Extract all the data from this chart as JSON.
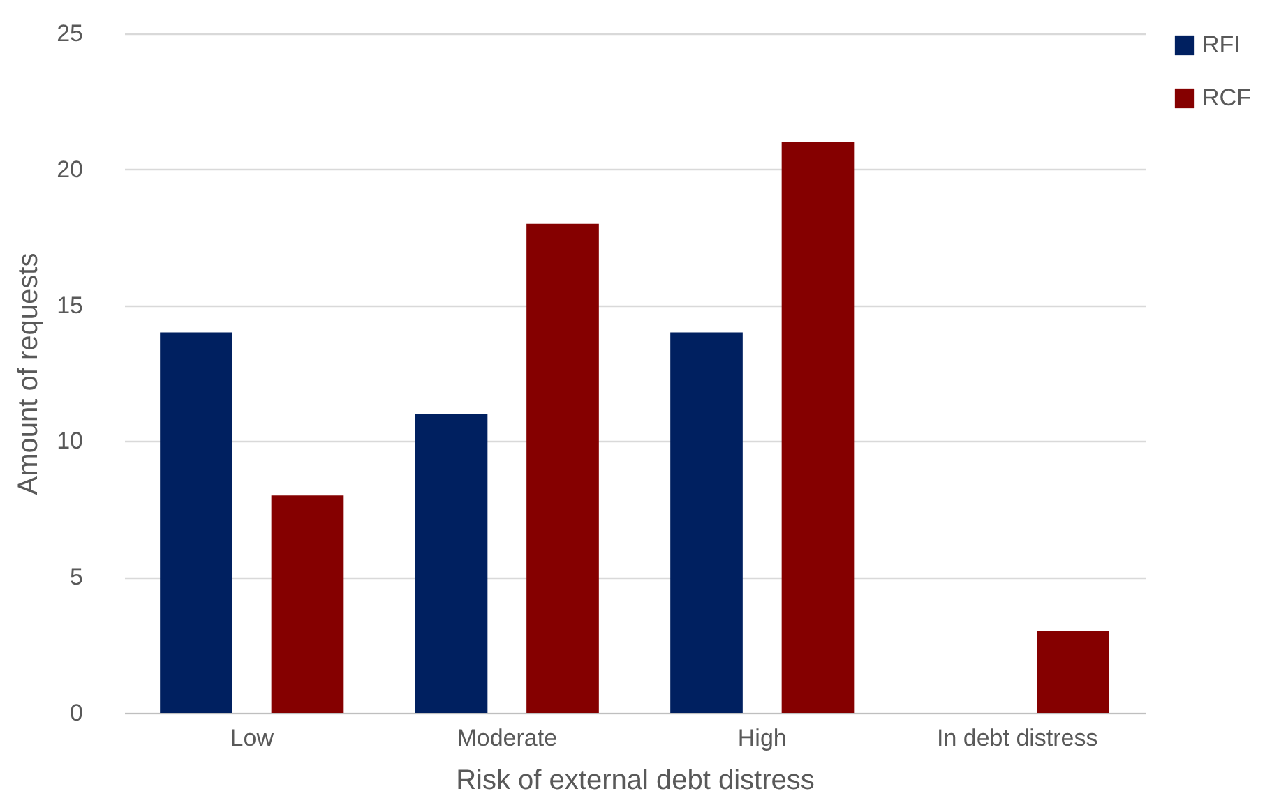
{
  "chart_data": {
    "type": "bar",
    "xlabel": "Risk of external debt distress",
    "ylabel": "Amount of requests",
    "categories": [
      "Low",
      "Moderate",
      "High",
      "In debt distress"
    ],
    "series": [
      {
        "name": "RFI",
        "color": "#002060",
        "values": [
          14,
          11,
          14,
          0
        ]
      },
      {
        "name": "RCF",
        "color": "#850000",
        "values": [
          8,
          18,
          21,
          3
        ]
      }
    ],
    "ylim": [
      0,
      25
    ],
    "yticks": [
      0,
      5,
      10,
      15,
      20,
      25
    ],
    "grid": "y",
    "legend": "right"
  }
}
